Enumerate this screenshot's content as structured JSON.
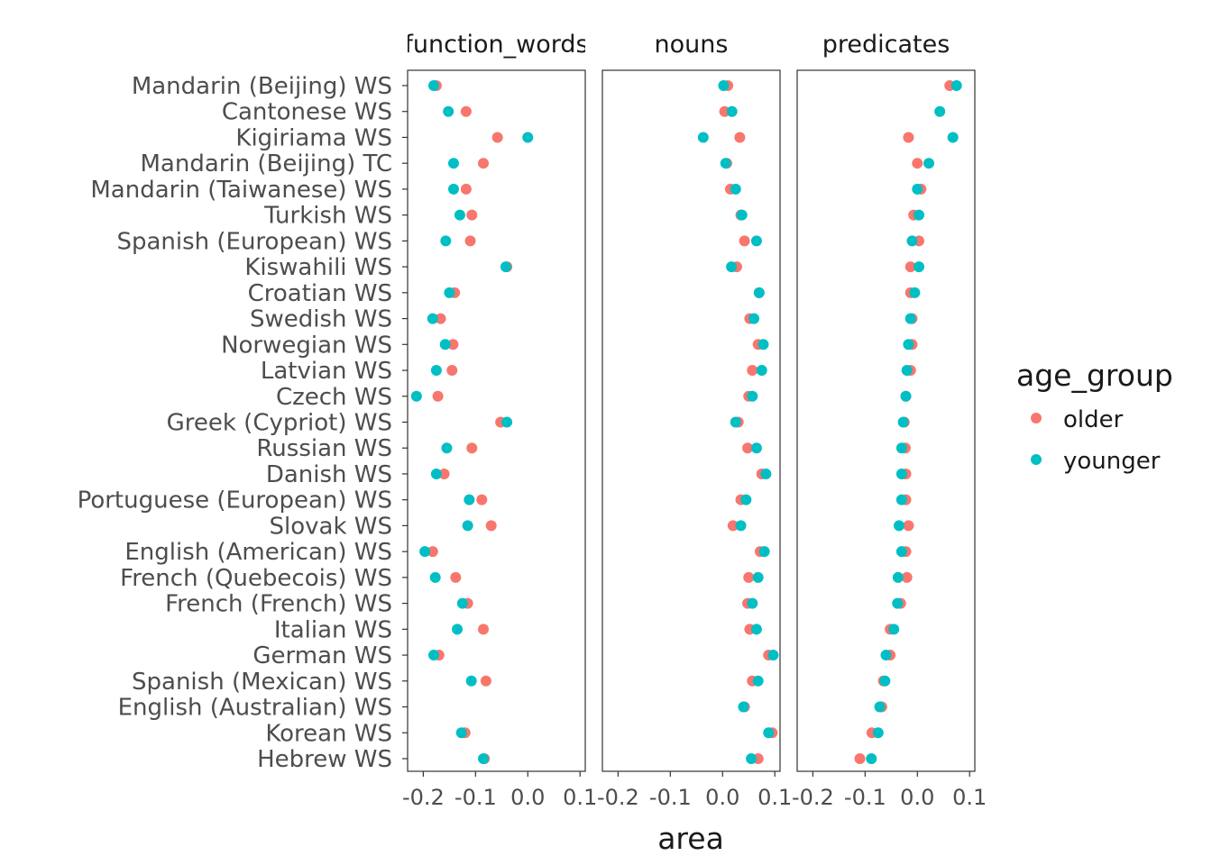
{
  "chart_data": {
    "type": "scatter",
    "xlabel": "area",
    "ylabel": "",
    "xlim": [
      -0.23,
      0.11
    ],
    "xticks": [
      -0.2,
      -0.1,
      0.0,
      0.1
    ],
    "xtick_labels": [
      "-0.2",
      "-0.1",
      "0.0",
      "0.1"
    ],
    "grid": false,
    "legend_position": "right",
    "legend": {
      "title": "age_group",
      "entries": [
        {
          "name": "older",
          "color": "#F8766D"
        },
        {
          "name": "younger",
          "color": "#00BFC4"
        }
      ]
    },
    "categories": [
      "Mandarin (Beijing) WS",
      "Cantonese WS",
      "Kigiriama WS",
      "Mandarin (Beijing) TC",
      "Mandarin (Taiwanese) WS",
      "Turkish WS",
      "Spanish (European) WS",
      "Kiswahili WS",
      "Croatian WS",
      "Swedish WS",
      "Norwegian WS",
      "Latvian WS",
      "Czech WS",
      "Greek (Cypriot) WS",
      "Russian WS",
      "Danish WS",
      "Portuguese (European) WS",
      "Slovak WS",
      "English (American) WS",
      "French (Quebecois) WS",
      "French (French) WS",
      "Italian WS",
      "German WS",
      "Spanish (Mexican) WS",
      "English (Australian) WS",
      "Korean WS",
      "Hebrew WS"
    ],
    "panels": [
      {
        "title": "function_words",
        "series": [
          {
            "name": "older",
            "values": [
              -0.175,
              -0.118,
              -0.058,
              -0.085,
              -0.118,
              -0.107,
              -0.11,
              -0.04,
              -0.14,
              -0.167,
              -0.143,
              -0.145,
              -0.172,
              -0.052,
              -0.107,
              -0.16,
              -0.088,
              -0.07,
              -0.182,
              -0.138,
              -0.115,
              -0.085,
              -0.17,
              -0.08,
              null,
              -0.12,
              -0.083
            ]
          },
          {
            "name": "younger",
            "values": [
              -0.18,
              -0.152,
              0.0,
              -0.142,
              -0.142,
              -0.13,
              -0.157,
              -0.042,
              -0.15,
              -0.182,
              -0.158,
              -0.175,
              -0.213,
              -0.04,
              -0.155,
              -0.175,
              -0.112,
              -0.115,
              -0.197,
              -0.177,
              -0.125,
              -0.135,
              -0.18,
              -0.108,
              null,
              -0.127,
              -0.085
            ]
          }
        ]
      },
      {
        "title": "nouns",
        "series": [
          {
            "name": "older",
            "values": [
              0.01,
              0.004,
              0.033,
              0.008,
              0.015,
              0.035,
              0.042,
              0.027,
              0.07,
              0.052,
              0.068,
              0.057,
              0.05,
              0.03,
              0.048,
              0.075,
              0.035,
              0.02,
              0.072,
              0.05,
              0.048,
              0.052,
              0.088,
              0.057,
              0.042,
              0.095,
              0.068
            ]
          },
          {
            "name": "younger",
            "values": [
              0.002,
              0.018,
              -0.037,
              0.006,
              0.025,
              0.037,
              0.065,
              0.017,
              0.07,
              0.06,
              0.078,
              0.075,
              0.057,
              0.025,
              0.065,
              0.083,
              0.045,
              0.035,
              0.08,
              0.068,
              0.057,
              0.065,
              0.097,
              0.068,
              0.04,
              0.088,
              0.055
            ]
          }
        ]
      },
      {
        "title": "predicates",
        "series": [
          {
            "name": "older",
            "values": [
              0.062,
              null,
              -0.017,
              0.0,
              0.007,
              -0.007,
              0.003,
              -0.013,
              -0.013,
              -0.01,
              -0.01,
              -0.013,
              -0.022,
              -0.025,
              -0.023,
              -0.022,
              -0.022,
              -0.017,
              -0.022,
              -0.02,
              -0.032,
              -0.052,
              -0.052,
              -0.065,
              -0.068,
              -0.087,
              -0.11
            ]
          },
          {
            "name": "younger",
            "values": [
              0.075,
              0.043,
              0.068,
              0.022,
              0.0,
              0.003,
              -0.01,
              0.003,
              -0.005,
              -0.013,
              -0.017,
              -0.02,
              -0.022,
              -0.027,
              -0.03,
              -0.03,
              -0.03,
              -0.035,
              -0.03,
              -0.037,
              -0.038,
              -0.045,
              -0.06,
              -0.062,
              -0.072,
              -0.075,
              -0.088
            ]
          }
        ]
      }
    ]
  }
}
